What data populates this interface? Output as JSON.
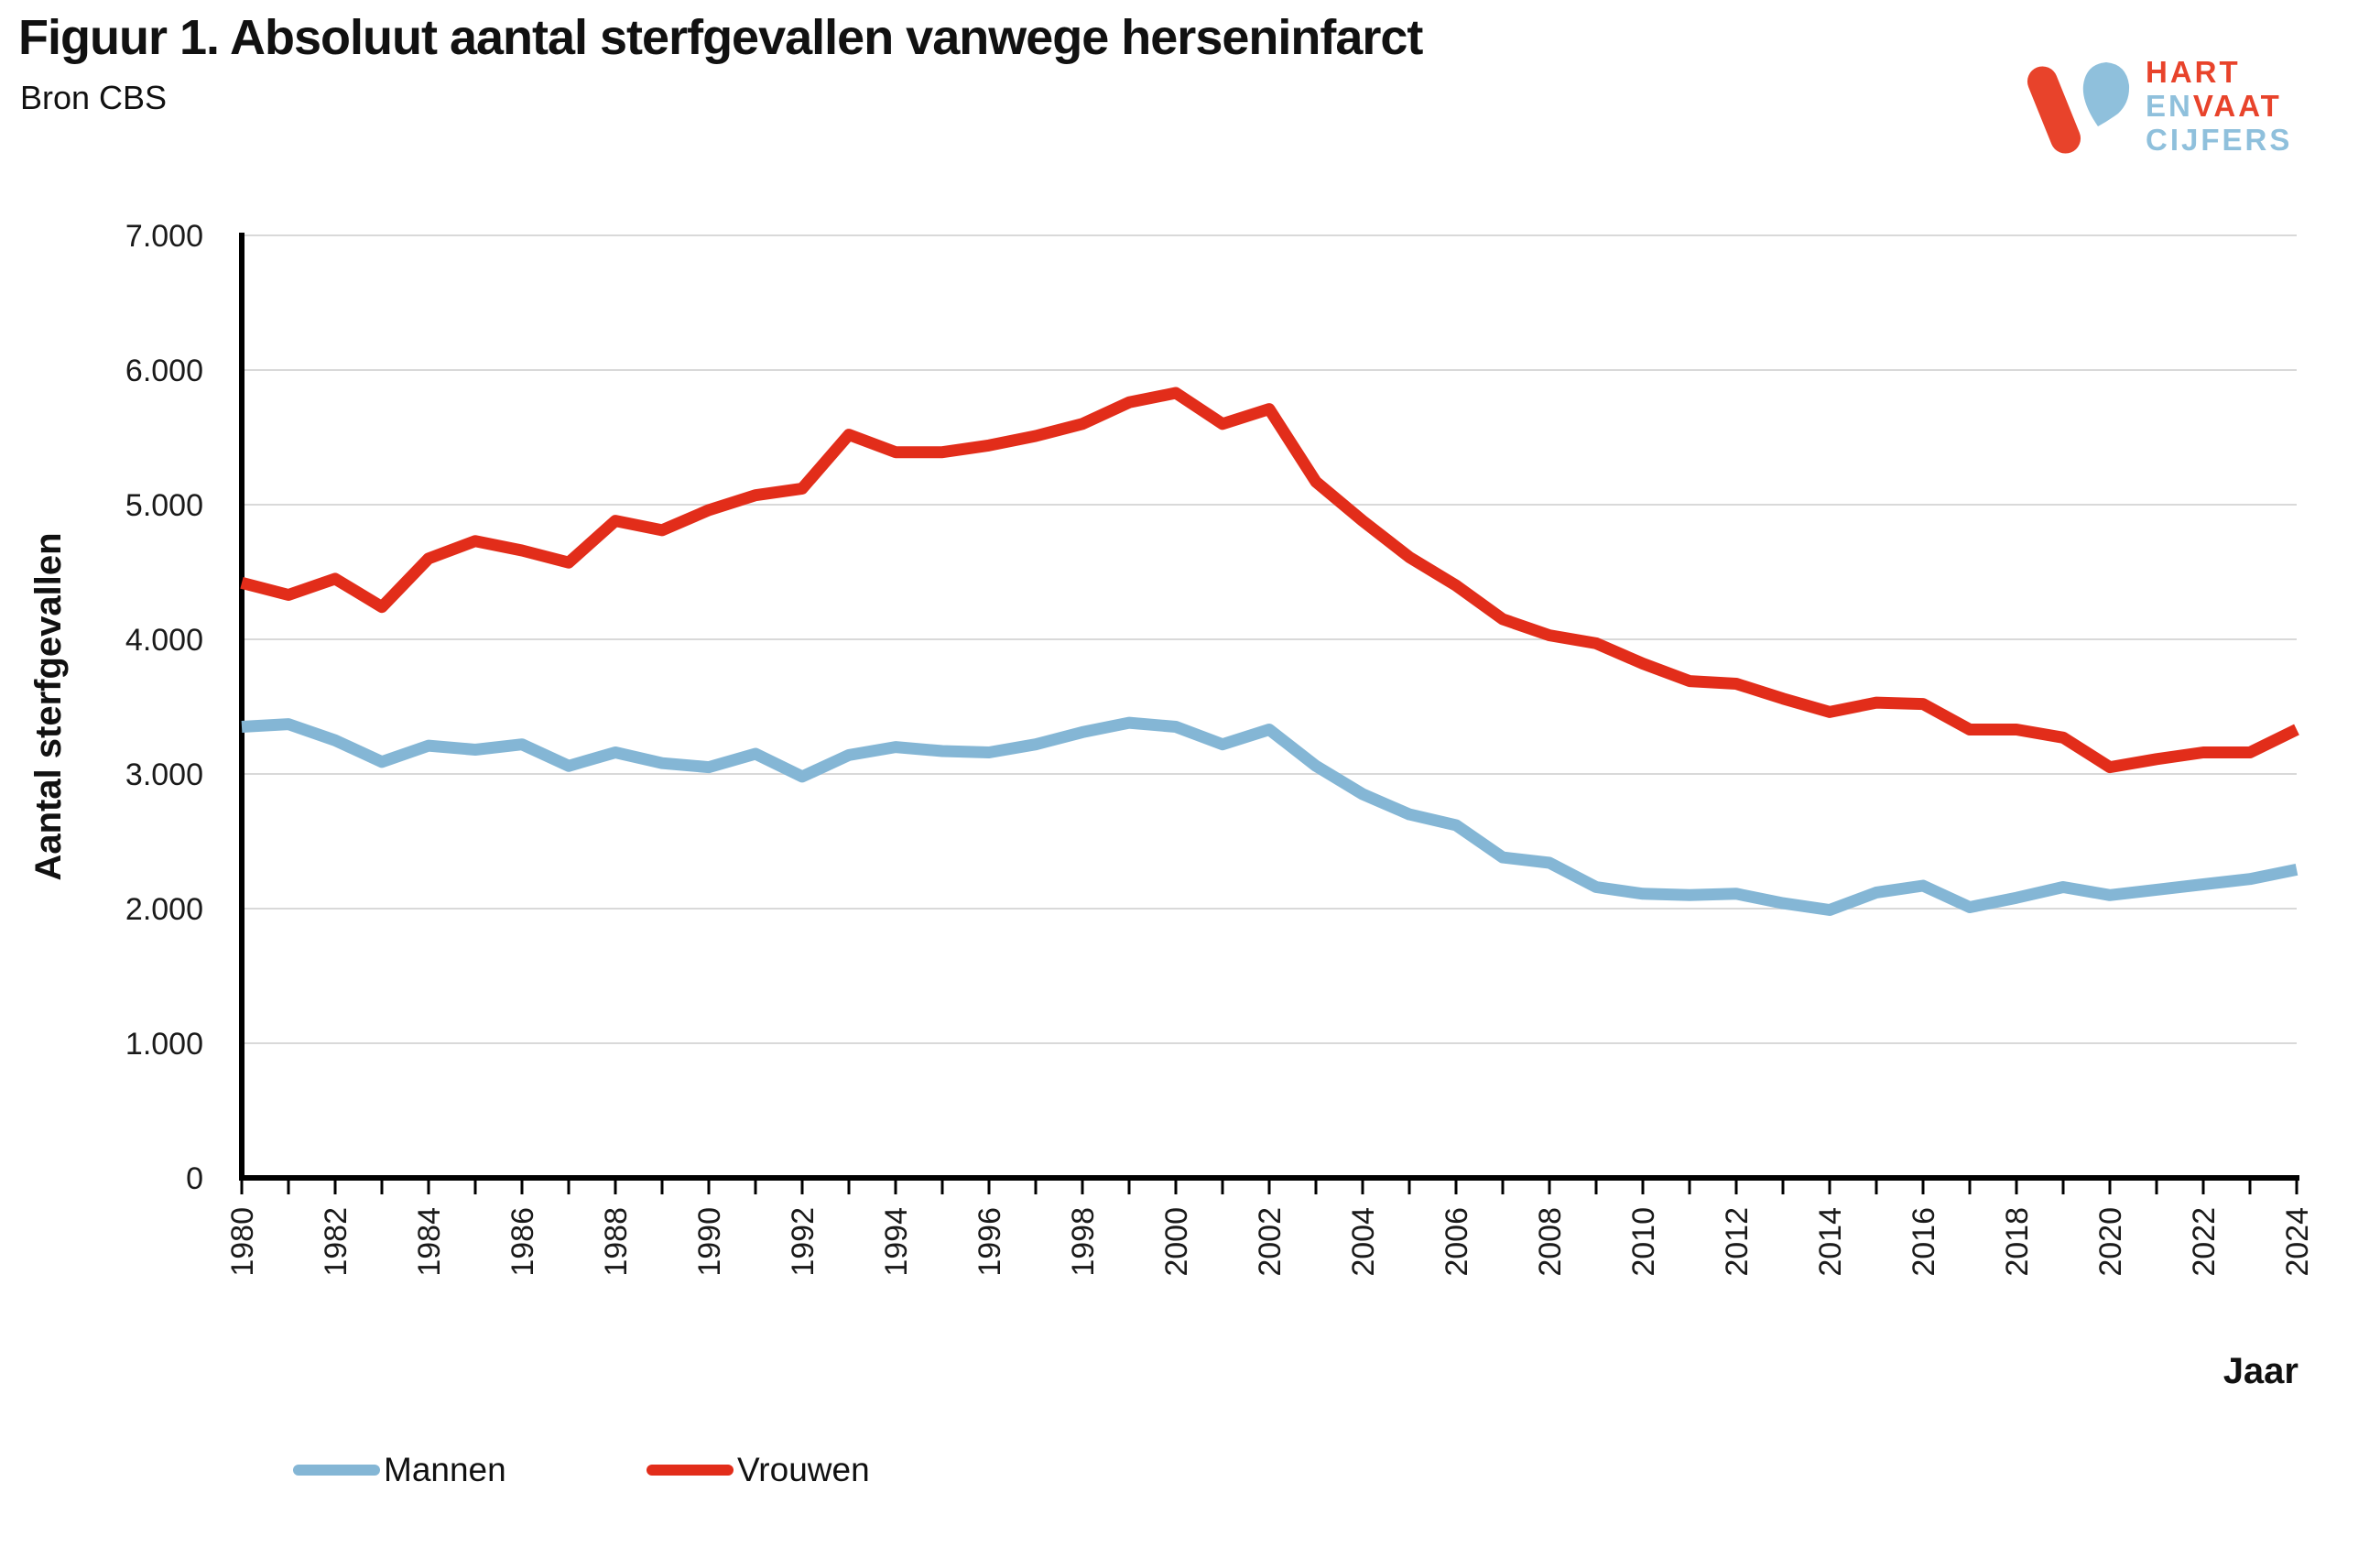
{
  "header": {
    "title": "Figuur 1. Absoluut aantal sterfgevallen vanwege herseninfarct",
    "source": "Bron CBS"
  },
  "logo": {
    "word1": "HART",
    "word2a": "EN",
    "word2b": "VAAT",
    "word3": "CIJFERS",
    "red": "#e8432b",
    "blue": "#8fc0dc"
  },
  "chart_data": {
    "type": "line",
    "title": "Figuur 1. Absoluut aantal sterfgevallen vanwege herseninfarct",
    "xlabel": "Jaar",
    "ylabel": "Aantal sterfgevallen",
    "ylim": [
      0,
      7000
    ],
    "grid": "horizontal-only",
    "gridline_color": "#d9d9d9",
    "axis_color": "#000000",
    "legend_position": "bottom-left",
    "x": [
      1980,
      1981,
      1982,
      1983,
      1984,
      1985,
      1986,
      1987,
      1988,
      1989,
      1990,
      1991,
      1992,
      1993,
      1994,
      1995,
      1996,
      1997,
      1998,
      1999,
      2000,
      2001,
      2002,
      2003,
      2004,
      2005,
      2006,
      2007,
      2008,
      2009,
      2010,
      2011,
      2012,
      2013,
      2014,
      2015,
      2016,
      2017,
      2018,
      2019,
      2020,
      2021,
      2022,
      2023,
      2024
    ],
    "x_tick_labels": [
      "1980",
      "1982",
      "1984",
      "1986",
      "1988",
      "1990",
      "1992",
      "1994",
      "1996",
      "1998",
      "2000",
      "2002",
      "2004",
      "2006",
      "2008",
      "2010",
      "2012",
      "2014",
      "2016",
      "2018",
      "2020",
      "2022",
      "2024"
    ],
    "y_ticks": [
      {
        "value": 0,
        "label": "0"
      },
      {
        "value": 1000,
        "label": "1.000"
      },
      {
        "value": 2000,
        "label": "2.000"
      },
      {
        "value": 3000,
        "label": "3.000"
      },
      {
        "value": 4000,
        "label": "4.000"
      },
      {
        "value": 5000,
        "label": "5.000"
      },
      {
        "value": 6000,
        "label": "6.000"
      },
      {
        "value": 7000,
        "label": "7.000"
      }
    ],
    "series": [
      {
        "name": "Mannen",
        "color": "#84b6d5",
        "values": [
          3350,
          3370,
          3250,
          3090,
          3210,
          3180,
          3220,
          3060,
          3160,
          3080,
          3050,
          3150,
          2980,
          3140,
          3200,
          3170,
          3160,
          3220,
          3310,
          3380,
          3350,
          3220,
          3330,
          3060,
          2850,
          2700,
          2620,
          2380,
          2340,
          2160,
          2110,
          2100,
          2110,
          2040,
          1990,
          2120,
          2170,
          2010,
          2080,
          2160,
          2100,
          2140,
          2180,
          2220,
          2290
        ]
      },
      {
        "name": "Vrouwen",
        "color": "#e22d1a",
        "values": [
          4420,
          4330,
          4450,
          4240,
          4600,
          4730,
          4660,
          4570,
          4880,
          4810,
          4960,
          5070,
          5120,
          5520,
          5390,
          5390,
          5440,
          5510,
          5600,
          5760,
          5830,
          5600,
          5710,
          5170,
          4880,
          4610,
          4400,
          4150,
          4030,
          3970,
          3820,
          3690,
          3670,
          3560,
          3460,
          3530,
          3520,
          3330,
          3330,
          3270,
          3050,
          3110,
          3160,
          3160,
          3330
        ]
      }
    ]
  },
  "legend": {
    "items": [
      {
        "label": "Mannen",
        "color": "#84b6d5"
      },
      {
        "label": "Vrouwen",
        "color": "#e22d1a"
      }
    ]
  }
}
